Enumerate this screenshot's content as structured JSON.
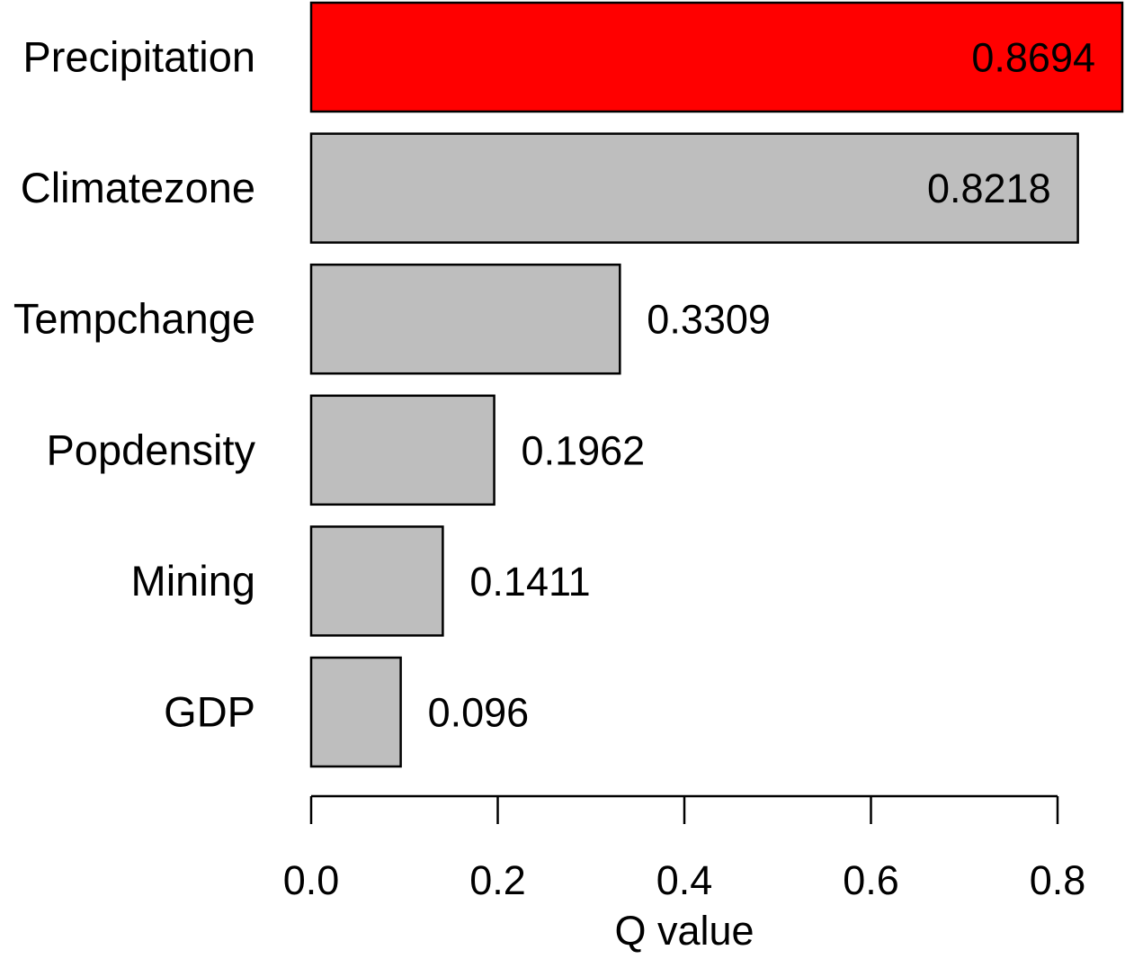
{
  "chart_data": {
    "type": "bar",
    "orientation": "horizontal",
    "categories": [
      "Precipitation",
      "Climatezone",
      "Tempchange",
      "Popdensity",
      "Mining",
      "GDP"
    ],
    "values": [
      0.8694,
      0.8218,
      0.3309,
      0.1962,
      0.1411,
      0.096
    ],
    "value_labels": [
      "0.8694",
      "0.8218",
      "0.3309",
      "0.1962",
      "0.1411",
      "0.096"
    ],
    "highlight_index": 0,
    "colors": {
      "highlight": "#ff0000",
      "default": "#bebebe",
      "stroke": "#000000"
    },
    "title": "",
    "xlabel": "Q value",
    "ylabel": "",
    "xlim": [
      0,
      0.8
    ],
    "xticks": [
      0.0,
      0.2,
      0.4,
      0.6,
      0.8
    ],
    "xtick_labels": [
      "0.0",
      "0.2",
      "0.4",
      "0.6",
      "0.8"
    ],
    "grid": false,
    "legend": "none"
  }
}
